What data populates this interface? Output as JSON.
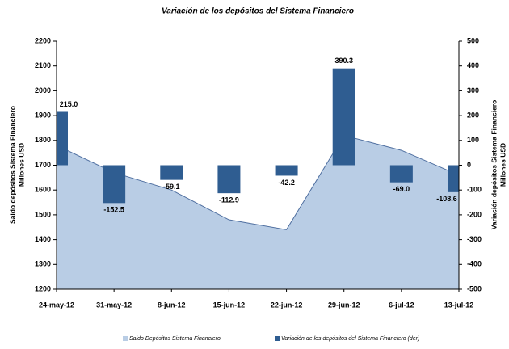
{
  "chart_data": {
    "type": "combo",
    "title": "Variación de los depósitos del Sistema Financiero",
    "y_label": [
      "Saldo depósitos Sistema Financiero",
      "Millones USD"
    ],
    "y2_label": [
      "Variación depósitos Sistema Financiero",
      "Millones USD"
    ],
    "categories": [
      "24-may-12",
      "31-may-12",
      "8-jun-12",
      "15-jun-12",
      "22-jun-12",
      "29-jun-12",
      "6-jul-12",
      "13-jul-12"
    ],
    "ylim": [
      1200,
      2200
    ],
    "yticks": [
      1200,
      1300,
      1400,
      1500,
      1600,
      1700,
      1800,
      1900,
      2000,
      2100,
      2200
    ],
    "y2lim": [
      -500,
      500
    ],
    "y2ticks": [
      -500,
      -400,
      -300,
      -200,
      -100,
      0,
      100,
      200,
      300,
      400,
      500
    ],
    "series": [
      {
        "name": "Saldo Depósitos Sistema  Financiero",
        "type": "area",
        "color": "#b9cde5",
        "line_color": "#4f6fa0",
        "values": [
          1780,
          1670,
          1600,
          1480,
          1440,
          1820,
          1760,
          1660
        ]
      },
      {
        "name": "Variación de los depósitos del Sistema Financiero (der)",
        "type": "bar",
        "axis": "y2",
        "color": "#2f5d91",
        "values": [
          215.0,
          -152.5,
          -59.1,
          -112.9,
          -42.2,
          390.3,
          -69.0,
          -108.6
        ],
        "value_labels": [
          "215.0",
          "-152.5",
          "-59.1",
          "-112.9",
          "-42.2",
          "390.3",
          "-69.0",
          "-108.6"
        ]
      }
    ]
  }
}
